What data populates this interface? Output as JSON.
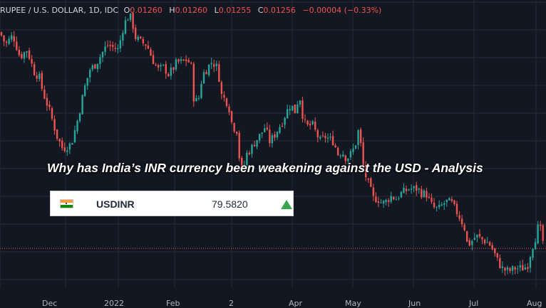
{
  "legend": {
    "symbol": "RUPEE / U.S. DOLLAR, 1D, IDC",
    "o_label": "O",
    "o_value": "0.01260",
    "h_label": "H",
    "h_value": "0.01260",
    "l_label": "L",
    "l_value": "0.01255",
    "c_label": "C",
    "c_value": "0.01256",
    "change": "−0.00004 (−0.33%)"
  },
  "headline": "Why has India’s INR currency been weakening against the USD - Analysis",
  "ticker": {
    "flag_icon": "india-flag-icon",
    "symbol": "USDINR",
    "value": "79.5820",
    "direction_icon": "up-triangle-icon"
  },
  "colors": {
    "background": "#131722",
    "grid": "#262b38",
    "up": "#26a69a",
    "down": "#ef5350",
    "price_line": "#ef5350"
  },
  "chart_data": {
    "type": "candlestick",
    "title": "RUPEE / U.S. DOLLAR, 1D, IDC",
    "x_tick_labels": [
      "Dec",
      "2022",
      "Feb",
      "2",
      "Apr",
      "May",
      "Jun",
      "Jul",
      "Aug"
    ],
    "ylim": [
      0.0124,
      0.01356
    ],
    "grid": true,
    "last_price": 0.01256,
    "anchors": [
      [
        0,
        0.01343
      ],
      [
        8,
        0.01338
      ],
      [
        18,
        0.01342
      ],
      [
        28,
        0.01333
      ],
      [
        38,
        0.01336
      ],
      [
        48,
        0.01327
      ],
      [
        55,
        0.01325
      ],
      [
        60,
        0.01319
      ],
      [
        70,
        0.01311
      ],
      [
        80,
        0.01301
      ],
      [
        88,
        0.01296
      ],
      [
        100,
        0.01298
      ],
      [
        110,
        0.01309
      ],
      [
        118,
        0.0132
      ],
      [
        126,
        0.01328
      ],
      [
        134,
        0.0133
      ],
      [
        142,
        0.01334
      ],
      [
        150,
        0.01338
      ],
      [
        158,
        0.01337
      ],
      [
        166,
        0.01336
      ],
      [
        172,
        0.01344
      ],
      [
        178,
        0.01349
      ],
      [
        184,
        0.01349
      ],
      [
        190,
        0.01341
      ],
      [
        198,
        0.01339
      ],
      [
        206,
        0.01338
      ],
      [
        214,
        0.01332
      ],
      [
        222,
        0.01328
      ],
      [
        230,
        0.01329
      ],
      [
        236,
        0.01326
      ],
      [
        242,
        0.01328
      ],
      [
        248,
        0.01331
      ],
      [
        256,
        0.01331
      ],
      [
        262,
        0.01332
      ],
      [
        268,
        0.0133
      ],
      [
        272,
        0.01316
      ],
      [
        278,
        0.01315
      ],
      [
        284,
        0.01326
      ],
      [
        290,
        0.01328
      ],
      [
        296,
        0.01331
      ],
      [
        302,
        0.0133
      ],
      [
        306,
        0.01328
      ],
      [
        310,
        0.01318
      ],
      [
        318,
        0.01315
      ],
      [
        322,
        0.01312
      ],
      [
        326,
        0.01305
      ],
      [
        332,
        0.01304
      ],
      [
        336,
        0.01292
      ],
      [
        340,
        0.01286
      ],
      [
        346,
        0.01294
      ],
      [
        352,
        0.01296
      ],
      [
        358,
        0.01299
      ],
      [
        366,
        0.01302
      ],
      [
        372,
        0.01305
      ],
      [
        378,
        0.01299
      ],
      [
        384,
        0.01301
      ],
      [
        390,
        0.01304
      ],
      [
        396,
        0.01307
      ],
      [
        402,
        0.01311
      ],
      [
        408,
        0.01314
      ],
      [
        414,
        0.01311
      ],
      [
        420,
        0.01318
      ],
      [
        426,
        0.01307
      ],
      [
        432,
        0.01305
      ],
      [
        438,
        0.01306
      ],
      [
        444,
        0.01302
      ],
      [
        450,
        0.01299
      ],
      [
        456,
        0.01301
      ],
      [
        462,
        0.013
      ],
      [
        468,
        0.01299
      ],
      [
        474,
        0.01294
      ],
      [
        480,
        0.01295
      ],
      [
        486,
        0.01292
      ],
      [
        492,
        0.01294
      ],
      [
        498,
        0.01297
      ],
      [
        504,
        0.01305
      ],
      [
        508,
        0.01291
      ],
      [
        512,
        0.01286
      ],
      [
        518,
        0.01281
      ],
      [
        524,
        0.01276
      ],
      [
        530,
        0.01276
      ],
      [
        536,
        0.01274
      ],
      [
        542,
        0.01275
      ],
      [
        548,
        0.01277
      ],
      [
        556,
        0.01276
      ],
      [
        562,
        0.01278
      ],
      [
        568,
        0.01279
      ],
      [
        574,
        0.0128
      ],
      [
        580,
        0.0128
      ],
      [
        586,
        0.0128
      ],
      [
        592,
        0.01278
      ],
      [
        598,
        0.01278
      ],
      [
        604,
        0.01274
      ],
      [
        610,
        0.01272
      ],
      [
        616,
        0.01272
      ],
      [
        622,
        0.01274
      ],
      [
        628,
        0.01275
      ],
      [
        634,
        0.01274
      ],
      [
        640,
        0.01271
      ],
      [
        646,
        0.01268
      ],
      [
        652,
        0.01264
      ],
      [
        656,
        0.01257
      ],
      [
        662,
        0.01259
      ],
      [
        668,
        0.01261
      ],
      [
        674,
        0.0126
      ],
      [
        680,
        0.01259
      ],
      [
        686,
        0.01258
      ],
      [
        692,
        0.01255
      ],
      [
        698,
        0.01251
      ],
      [
        704,
        0.01248
      ],
      [
        710,
        0.01247
      ],
      [
        716,
        0.01247
      ],
      [
        722,
        0.01248
      ],
      [
        728,
        0.01248
      ],
      [
        734,
        0.01248
      ],
      [
        740,
        0.01249
      ],
      [
        746,
        0.01256
      ],
      [
        752,
        0.01261
      ],
      [
        756,
        0.01266
      ],
      [
        760,
        0.01261
      ],
      [
        764,
        0.01256
      ]
    ]
  }
}
